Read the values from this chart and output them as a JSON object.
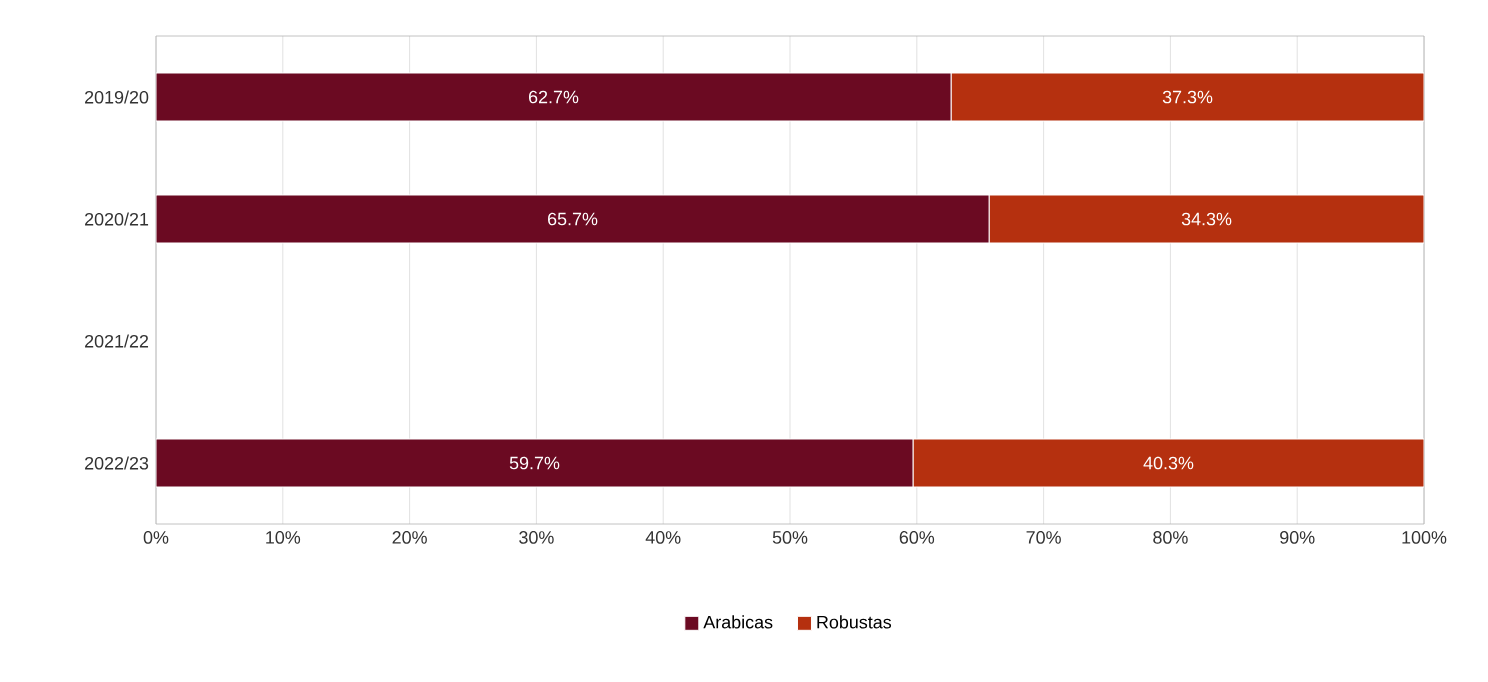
{
  "chart_data": {
    "type": "bar",
    "orientation": "horizontal",
    "stacked": true,
    "categories": [
      "2019/20",
      "2020/21",
      "2021/22",
      "2022/23"
    ],
    "series": [
      {
        "name": "Arabicas",
        "color": "#6b0a22",
        "values": [
          62.7,
          65.7,
          null,
          59.7
        ],
        "value_labels": [
          "62.7%",
          "65.7%",
          null,
          "59.7%"
        ]
      },
      {
        "name": "Robustas",
        "color": "#b5300f",
        "values": [
          37.3,
          34.3,
          null,
          40.3
        ],
        "value_labels": [
          "37.3%",
          "34.3%",
          null,
          "40.3%"
        ]
      }
    ],
    "xlim": [
      0,
      100
    ],
    "xticks": [
      {
        "value": 0,
        "label": "0%"
      },
      {
        "value": 10,
        "label": "10%"
      },
      {
        "value": 20,
        "label": "20%"
      },
      {
        "value": 30,
        "label": "30%"
      },
      {
        "value": 40,
        "label": "40%"
      },
      {
        "value": 50,
        "label": "50%"
      },
      {
        "value": 60,
        "label": "60%"
      },
      {
        "value": 70,
        "label": "70%"
      },
      {
        "value": 80,
        "label": "80%"
      },
      {
        "value": 90,
        "label": "90%"
      },
      {
        "value": 100,
        "label": "100%"
      }
    ],
    "grid": "x",
    "legend": "bottom"
  }
}
